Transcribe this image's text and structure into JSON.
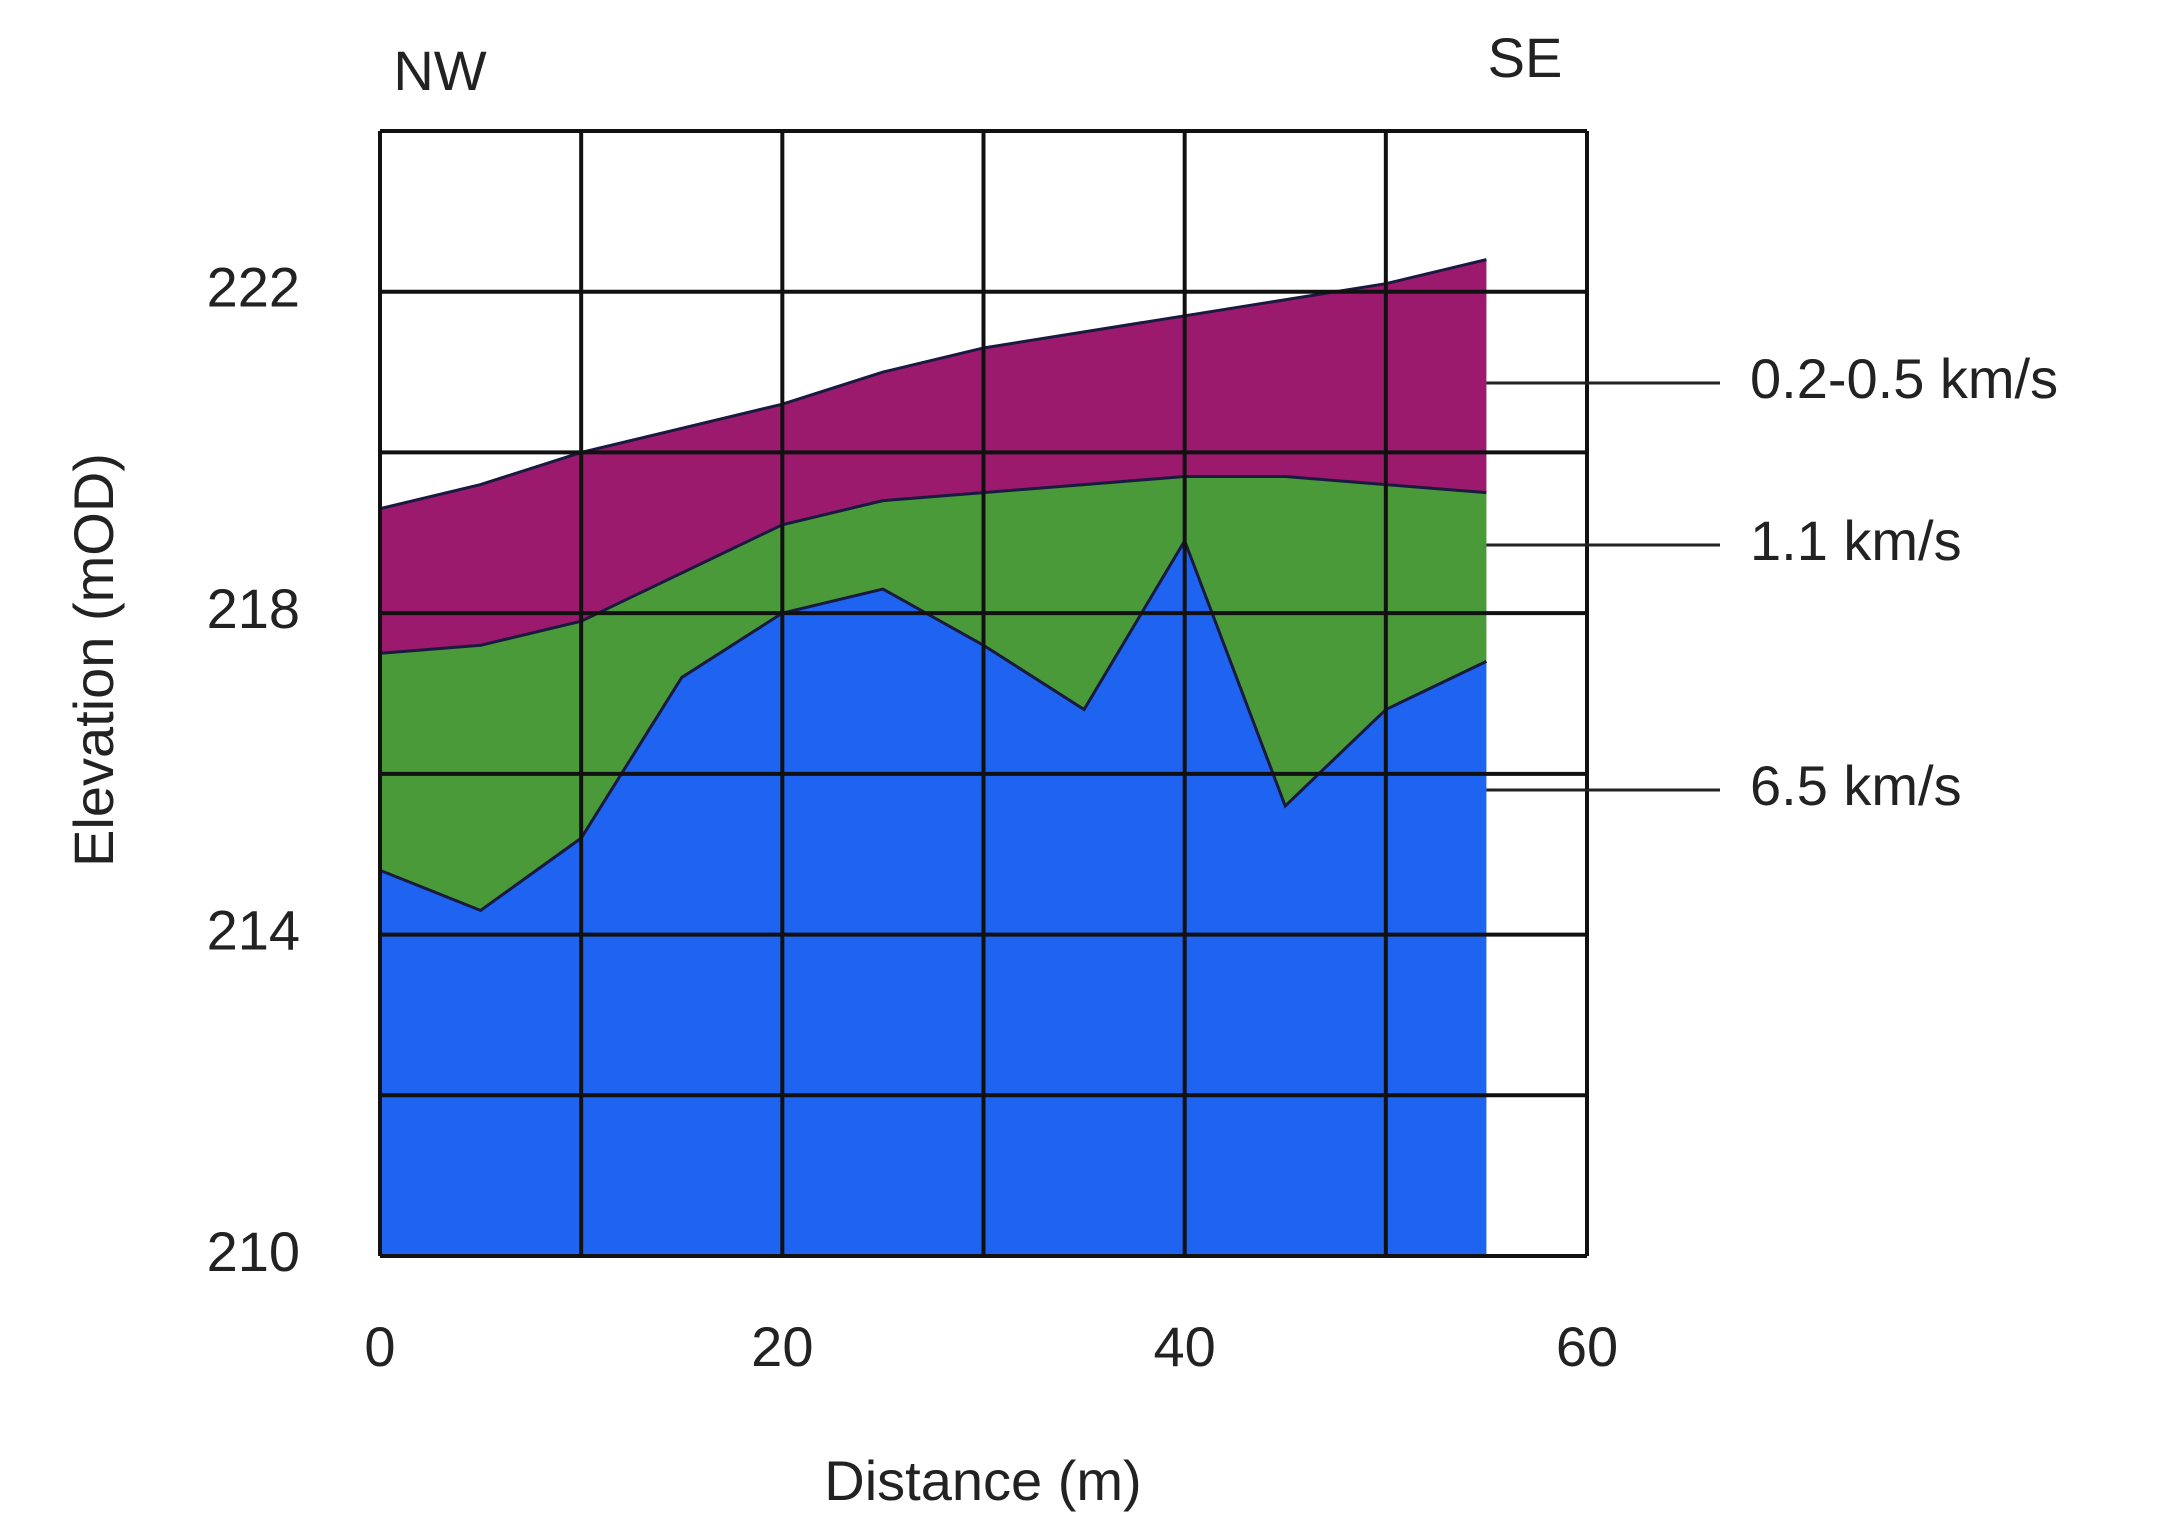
{
  "chart_data": {
    "type": "layers",
    "x_label": "Distance (m)",
    "y_label": "Elevation (mOD)",
    "annotations": [
      "NW",
      "SE"
    ],
    "x": [
      0,
      5,
      10,
      15,
      20,
      25,
      30,
      35,
      40,
      45,
      50,
      55
    ],
    "series": [
      {
        "name": "0.2-0.5 km/s",
        "color": "#9b1a6e",
        "values": [
          219.3,
          219.6,
          220.0,
          220.3,
          220.6,
          221.0,
          221.3,
          221.5,
          221.7,
          221.9,
          222.1,
          222.4
        ]
      },
      {
        "name": "1.1 km/s",
        "color": "#4a9a3a",
        "values": [
          217.5,
          217.6,
          217.9,
          218.5,
          219.1,
          219.4,
          219.5,
          219.6,
          219.7,
          219.7,
          219.6,
          219.5
        ]
      },
      {
        "name": "6.5 km/s",
        "color": "#1e64f0",
        "values": [
          214.8,
          214.3,
          215.2,
          217.2,
          218.0,
          218.3,
          217.6,
          216.8,
          218.9,
          215.6,
          216.8,
          217.4
        ]
      }
    ],
    "xlim": [
      0,
      60
    ],
    "ylim": [
      210,
      224
    ],
    "xticks": [
      0,
      20,
      40,
      60
    ],
    "yticks": [
      210,
      214,
      218,
      222
    ],
    "xgrid": [
      0,
      10,
      20,
      30,
      40,
      50,
      60
    ],
    "ygrid": [
      210,
      212,
      214,
      216,
      218,
      220,
      222,
      224
    ],
    "grid": true
  }
}
